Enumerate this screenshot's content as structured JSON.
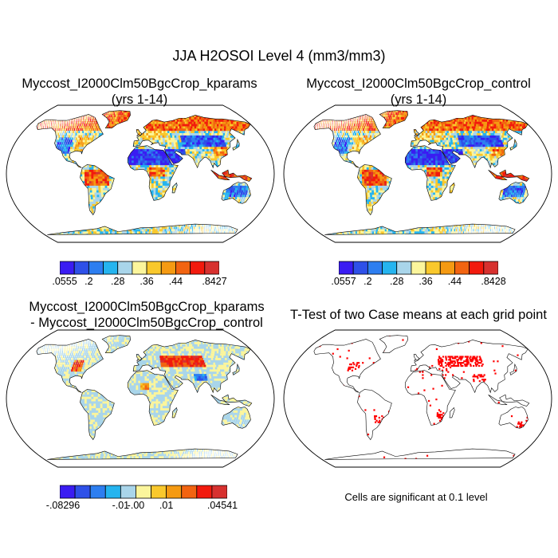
{
  "title": "JJA H2OSOI Level 4 (mm3/mm3)",
  "panels": [
    {
      "id": "kparams",
      "title_lines": [
        "Myccost_I2000Clm50BgcCrop_kparams",
        "(yrs 1-14)"
      ],
      "kind": "absolute",
      "colorbar": {
        "colors": [
          "#3a1cf2",
          "#2e50e8",
          "#2d7ef0",
          "#25b4ef",
          "#a9d5ea",
          "#fbf59c",
          "#f9c82c",
          "#f59a12",
          "#f26411",
          "#f21a0d",
          "#d7312f"
        ],
        "labels": [
          ".0555",
          ".2",
          ".28",
          ".36",
          ".44",
          ".8427"
        ]
      }
    },
    {
      "id": "control",
      "title_lines": [
        "Myccost_I2000Clm50BgcCrop_control",
        "(yrs 1-14)"
      ],
      "kind": "absolute",
      "colorbar": {
        "colors": [
          "#3a1cf2",
          "#2e50e8",
          "#2d7ef0",
          "#25b4ef",
          "#a9d5ea",
          "#fbf59c",
          "#f9c82c",
          "#f59a12",
          "#f26411",
          "#f21a0d",
          "#d7312f"
        ],
        "labels": [
          ".0557",
          ".2",
          ".28",
          ".36",
          ".44",
          ".8428"
        ]
      }
    },
    {
      "id": "difference",
      "title_lines": [
        "Myccost_I2000Clm50BgcCrop_kparams",
        "- Myccost_I2000Clm50BgcCrop_control"
      ],
      "kind": "difference",
      "colorbar": {
        "colors": [
          "#3a1cf2",
          "#2e50e8",
          "#2d7ef0",
          "#25b4ef",
          "#a9d5ea",
          "#fbf59c",
          "#f9c82c",
          "#f59a12",
          "#f26411",
          "#f21a0d",
          "#d7312f"
        ],
        "labels": [
          "-.08296",
          "-.01",
          "-.00",
          ".01",
          ".04541"
        ]
      }
    },
    {
      "id": "ttest",
      "title_lines": [
        "T-Test of two Case means at each grid point"
      ],
      "kind": "ttest",
      "note": "Cells are significant at 0.1 level"
    }
  ],
  "colors": {
    "significant": "#ff0000",
    "coastline": "#000000",
    "ocean": "#ffffff"
  }
}
